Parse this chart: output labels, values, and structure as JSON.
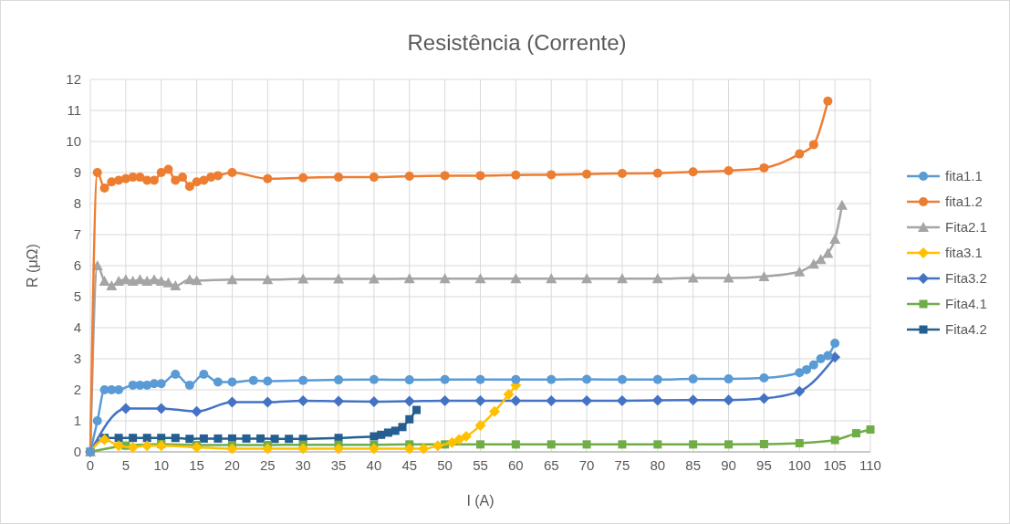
{
  "chart_data": {
    "type": "line",
    "title": "Resistência (Corrente)",
    "xlabel": "I (A)",
    "ylabel": "R (μΩ)",
    "xlim": [
      0,
      110
    ],
    "xticks": [
      0,
      5,
      10,
      15,
      20,
      25,
      30,
      35,
      40,
      45,
      50,
      55,
      60,
      65,
      70,
      75,
      80,
      85,
      90,
      95,
      100,
      105,
      110
    ],
    "ylim": [
      0,
      12
    ],
    "yticks": [
      0,
      1,
      2,
      3,
      4,
      5,
      6,
      7,
      8,
      9,
      10,
      11,
      12
    ],
    "grid": true,
    "legend": "right",
    "line_style": "solid",
    "series": [
      {
        "name": "fita1.1",
        "color": "#5b9bd5",
        "marker": "circle",
        "x": [
          0,
          1,
          2,
          3,
          4,
          6,
          7,
          8,
          9,
          10,
          12,
          14,
          16,
          18,
          20,
          23,
          25,
          30,
          35,
          40,
          45,
          50,
          55,
          60,
          65,
          70,
          75,
          80,
          85,
          90,
          95,
          100,
          101,
          102,
          103,
          104,
          105
        ],
        "values": [
          0,
          1,
          2,
          2,
          2,
          2.15,
          2.15,
          2.15,
          2.2,
          2.2,
          2.5,
          2.15,
          2.5,
          2.25,
          2.25,
          2.3,
          2.28,
          2.3,
          2.32,
          2.33,
          2.32,
          2.33,
          2.33,
          2.33,
          2.33,
          2.34,
          2.33,
          2.33,
          2.35,
          2.35,
          2.38,
          2.55,
          2.65,
          2.8,
          3,
          3.1,
          3.5
        ]
      },
      {
        "name": "fita1.2",
        "color": "#ed7d31",
        "marker": "circle",
        "x": [
          0,
          1,
          2,
          3,
          4,
          5,
          6,
          7,
          8,
          9,
          10,
          11,
          12,
          13,
          14,
          15,
          16,
          17,
          18,
          20,
          25,
          30,
          35,
          40,
          45,
          50,
          55,
          60,
          65,
          70,
          75,
          80,
          85,
          90,
          95,
          100,
          102,
          104
        ],
        "values": [
          0,
          9,
          8.5,
          8.7,
          8.75,
          8.8,
          8.85,
          8.85,
          8.75,
          8.75,
          9,
          9.1,
          8.75,
          8.85,
          8.55,
          8.7,
          8.75,
          8.85,
          8.9,
          9,
          8.8,
          8.83,
          8.85,
          8.85,
          8.88,
          8.9,
          8.9,
          8.92,
          8.93,
          8.95,
          8.97,
          8.98,
          9.02,
          9.06,
          9.15,
          9.6,
          9.9,
          11.3
        ]
      },
      {
        "name": "Fita2.1",
        "color": "#a5a5a5",
        "marker": "triangle",
        "x": [
          0,
          1,
          2,
          3,
          4,
          5,
          6,
          7,
          8,
          9,
          10,
          11,
          12,
          14,
          15,
          20,
          25,
          30,
          35,
          40,
          45,
          50,
          55,
          60,
          65,
          70,
          75,
          80,
          85,
          90,
          95,
          100,
          102,
          103,
          104,
          105,
          106
        ],
        "values": [
          0,
          6,
          5.5,
          5.35,
          5.5,
          5.55,
          5.5,
          5.55,
          5.5,
          5.55,
          5.5,
          5.45,
          5.35,
          5.55,
          5.52,
          5.55,
          5.55,
          5.57,
          5.57,
          5.57,
          5.58,
          5.58,
          5.58,
          5.58,
          5.58,
          5.58,
          5.58,
          5.58,
          5.6,
          5.6,
          5.65,
          5.8,
          6.05,
          6.2,
          6.4,
          6.85,
          7.95
        ]
      },
      {
        "name": "fita3.1",
        "color": "#ffc000",
        "marker": "diamond",
        "x": [
          0,
          2,
          4,
          6,
          8,
          10,
          15,
          20,
          25,
          30,
          35,
          40,
          45,
          47,
          49,
          51,
          52,
          53,
          55,
          57,
          59,
          60
        ],
        "values": [
          0,
          0.4,
          0.2,
          0.15,
          0.2,
          0.2,
          0.15,
          0.1,
          0.1,
          0.1,
          0.1,
          0.1,
          0.1,
          0.1,
          0.2,
          0.3,
          0.4,
          0.5,
          0.85,
          1.3,
          1.85,
          2.15
        ]
      },
      {
        "name": "Fita3.2",
        "color": "#4472c4",
        "marker": "diamond",
        "x": [
          0,
          5,
          10,
          15,
          20,
          25,
          30,
          35,
          40,
          45,
          50,
          55,
          60,
          65,
          70,
          75,
          80,
          85,
          90,
          95,
          100,
          105
        ],
        "values": [
          0,
          1.4,
          1.4,
          1.3,
          1.6,
          1.6,
          1.65,
          1.63,
          1.62,
          1.63,
          1.65,
          1.65,
          1.65,
          1.65,
          1.65,
          1.65,
          1.66,
          1.67,
          1.67,
          1.72,
          1.95,
          3.05
        ]
      },
      {
        "name": "Fita4.1",
        "color": "#70ad47",
        "marker": "square",
        "x": [
          0,
          5,
          10,
          15,
          20,
          25,
          30,
          35,
          40,
          45,
          50,
          55,
          60,
          65,
          70,
          75,
          80,
          85,
          90,
          95,
          100,
          105,
          108,
          110
        ],
        "values": [
          0,
          0.2,
          0.25,
          0.22,
          0.22,
          0.22,
          0.23,
          0.23,
          0.23,
          0.24,
          0.24,
          0.24,
          0.24,
          0.24,
          0.24,
          0.24,
          0.24,
          0.24,
          0.24,
          0.25,
          0.28,
          0.38,
          0.6,
          0.72
        ]
      },
      {
        "name": "Fita4.2",
        "color": "#255e91",
        "marker": "square",
        "x": [
          0,
          2,
          4,
          6,
          8,
          10,
          12,
          14,
          16,
          18,
          20,
          22,
          24,
          26,
          28,
          30,
          35,
          40,
          41,
          42,
          43,
          44,
          45,
          46
        ],
        "values": [
          0,
          0.45,
          0.45,
          0.45,
          0.45,
          0.45,
          0.45,
          0.42,
          0.43,
          0.43,
          0.43,
          0.43,
          0.43,
          0.42,
          0.42,
          0.42,
          0.45,
          0.5,
          0.55,
          0.62,
          0.68,
          0.8,
          1.05,
          1.35
        ]
      }
    ]
  }
}
